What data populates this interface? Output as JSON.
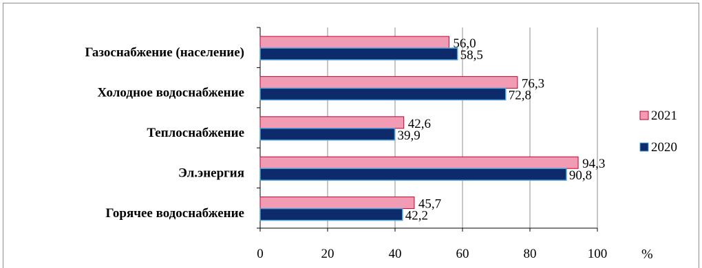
{
  "chart_data": {
    "type": "bar",
    "orientation": "horizontal",
    "categories": [
      "Газоснабжение (население)",
      "Холодное водоснабжение",
      "Теплоснабжение",
      "Эл.энергия",
      "Горячее водоснабжение"
    ],
    "series": [
      {
        "name": "2021",
        "values": [
          56.0,
          76.3,
          42.6,
          94.3,
          45.7
        ],
        "labels": [
          "56,0",
          "76,3",
          "42,6",
          "94,3",
          "45,7"
        ],
        "color": "#f29bb4",
        "stroke": "#c0002a"
      },
      {
        "name": "2020",
        "values": [
          58.5,
          72.8,
          39.9,
          90.8,
          42.2
        ],
        "labels": [
          "58,5",
          "72,8",
          "39,9",
          "90,8",
          "42,2"
        ],
        "color": "#0d2a6b",
        "stroke": "#4aa0d8"
      }
    ],
    "xlim": [
      0,
      100
    ],
    "xticks": [
      "0",
      "20",
      "40",
      "60",
      "80",
      "100"
    ],
    "x_unit": "%",
    "grid": true,
    "legend_position": "right"
  }
}
